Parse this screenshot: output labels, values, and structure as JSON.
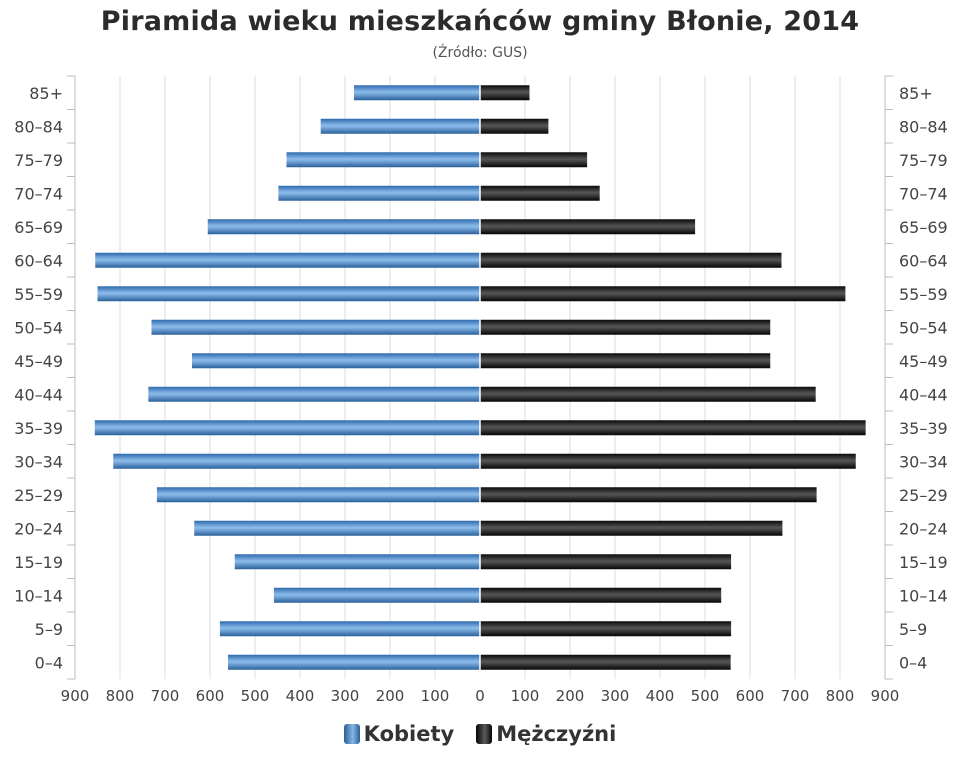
{
  "title": "Piramida wieku mieszkańców gminy Błonie, 2014",
  "subtitle": "(Źródło: GUS)",
  "legend": {
    "women": "Kobiety",
    "men": "Mężczyźni"
  },
  "colors": {
    "women": "#3d7cc4",
    "men": "#1a1a1a",
    "grid": "#dcdcdc",
    "axis_text": "#444444"
  },
  "chart_data": {
    "type": "bar",
    "orientation": "horizontal-diverging",
    "categories": [
      "85+",
      "80–84",
      "75–79",
      "70–74",
      "65–69",
      "60–64",
      "55–59",
      "50–54",
      "45–49",
      "40–44",
      "35–39",
      "30–34",
      "25–29",
      "20–24",
      "15–19",
      "10–14",
      "5–9",
      "0–4"
    ],
    "series": [
      {
        "name": "Kobiety",
        "side": "left",
        "values": [
          280,
          354,
          430,
          448,
          605,
          855,
          850,
          730,
          640,
          737,
          856,
          815,
          718,
          635,
          545,
          458,
          578,
          560
        ]
      },
      {
        "name": "Mężczyźni",
        "side": "right",
        "values": [
          110,
          152,
          238,
          266,
          478,
          670,
          812,
          645,
          645,
          746,
          857,
          835,
          748,
          672,
          558,
          536,
          558,
          557
        ]
      }
    ],
    "xlim": [
      -900,
      900
    ],
    "x_ticks": [
      "900",
      "800",
      "700",
      "600",
      "500",
      "400",
      "300",
      "200",
      "100",
      "0",
      "100",
      "200",
      "300",
      "400",
      "500",
      "600",
      "700",
      "800",
      "900"
    ],
    "grid": true,
    "legend_position": "bottom-center"
  }
}
